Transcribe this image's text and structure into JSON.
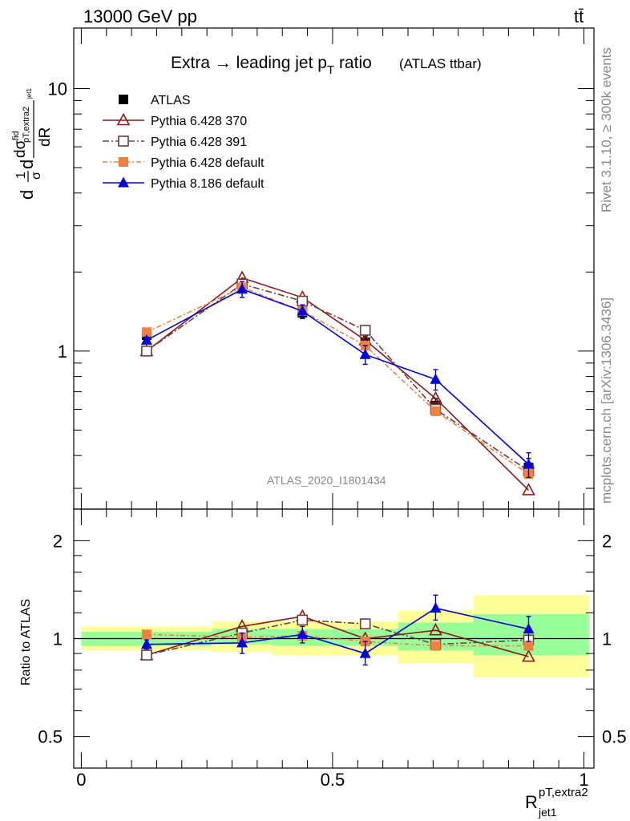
{
  "header": {
    "energy": "13000 GeV pp",
    "process": "tt̄"
  },
  "side_labels": {
    "rivet": "Rivet 3.1.10, ≥ 300k events",
    "site": "mcplots.cern.ch [arXiv:1306.3436]"
  },
  "chart_data": [
    {
      "type": "line",
      "panel": "main",
      "title": "Extra → leading jet p",
      "title_sub": "T",
      "title_after": " ratio",
      "title_extra": "(ATLAS ttbar)",
      "yscale": "log",
      "ylim": [
        0.25,
        17
      ],
      "xlim": [
        -0.015,
        1.02
      ],
      "ylabel": "d1/σ dσ/dR",
      "ytick_labels": [
        {
          "value": 1,
          "label": "1"
        },
        {
          "value": 10,
          "label": "10"
        }
      ],
      "watermark": "ATLAS_2020_I1801434",
      "x": [
        0.13,
        0.32,
        0.44,
        0.565,
        0.705,
        0.89
      ],
      "series": [
        {
          "name": "ATLAS",
          "color": "#000000",
          "marker": "square-filled",
          "values": [
            1.15,
            1.8,
            1.4,
            1.08,
            0.62,
            0.36
          ],
          "err_up": [
            0.05,
            0.08,
            0.07,
            0.06,
            0.04,
            0.03
          ],
          "err_dn": [
            0.05,
            0.08,
            0.07,
            0.06,
            0.04,
            0.03
          ]
        },
        {
          "name": "Pythia 6.428 370",
          "color": "#8B1A1A",
          "dash": "",
          "marker": "triangle-open",
          "values": [
            1.0,
            1.9,
            1.6,
            1.1,
            0.66,
            0.295
          ]
        },
        {
          "name": "Pythia 6.428 391",
          "color": "#6B4040",
          "dash": "8,3,2,3",
          "marker": "square-open",
          "values": [
            1.0,
            1.8,
            1.55,
            1.2,
            0.6,
            0.35
          ]
        },
        {
          "name": "Pythia 6.428 default",
          "color": "#F08040",
          "dash": "6,3,2,3",
          "marker": "square-filled",
          "values": [
            1.18,
            1.75,
            1.42,
            1.05,
            0.59,
            0.34
          ]
        },
        {
          "name": "Pythia 8.186 default",
          "color": "#0000DD",
          "dash": "",
          "marker": "triangle-filled",
          "values": [
            1.1,
            1.72,
            1.42,
            0.97,
            0.78,
            0.37
          ],
          "err_up": [
            0.03,
            0.12,
            0.08,
            0.08,
            0.07,
            0.04
          ],
          "err_dn": [
            0.03,
            0.12,
            0.08,
            0.08,
            0.07,
            0.04
          ]
        }
      ]
    },
    {
      "type": "line",
      "panel": "ratio",
      "ylabel": "Ratio to ATLAS",
      "yscale": "log",
      "ylim": [
        0.4,
        2.5
      ],
      "xlim": [
        -0.015,
        1.02
      ],
      "xlabel": "R",
      "xlabel_sup": "pT,extra2",
      "xlabel_sub": "jet1",
      "xtick_labels": [
        {
          "value": 0,
          "label": "0"
        },
        {
          "value": 0.5,
          "label": "0.5"
        },
        {
          "value": 1,
          "label": "1"
        }
      ],
      "ytick_labels": [
        {
          "value": 0.5,
          "label": "0.5"
        },
        {
          "value": 1,
          "label": "1"
        },
        {
          "value": 2,
          "label": "2"
        }
      ],
      "bands": [
        {
          "x0": 0.0,
          "x1": 0.26,
          "green": [
            0.95,
            1.05
          ],
          "yellow": [
            0.92,
            1.09
          ]
        },
        {
          "x0": 0.26,
          "x1": 0.38,
          "green": [
            0.96,
            1.07
          ],
          "yellow": [
            0.91,
            1.13
          ]
        },
        {
          "x0": 0.38,
          "x1": 0.5,
          "green": [
            0.95,
            1.07
          ],
          "yellow": [
            0.89,
            1.13
          ]
        },
        {
          "x0": 0.5,
          "x1": 0.63,
          "green": [
            0.95,
            1.07
          ],
          "yellow": [
            0.89,
            1.13
          ]
        },
        {
          "x0": 0.63,
          "x1": 0.78,
          "green": [
            0.92,
            1.12
          ],
          "yellow": [
            0.84,
            1.22
          ]
        },
        {
          "x0": 0.78,
          "x1": 1.01,
          "green": [
            0.89,
            1.19
          ],
          "yellow": [
            0.76,
            1.36
          ]
        }
      ],
      "x": [
        0.13,
        0.32,
        0.44,
        0.565,
        0.705,
        0.89
      ],
      "series": [
        {
          "name": "Pythia 6.428 370",
          "color": "#8B1A1A",
          "dash": "",
          "marker": "triangle-open",
          "values": [
            0.89,
            1.09,
            1.17,
            1.0,
            1.06,
            0.88
          ]
        },
        {
          "name": "Pythia 6.428 391",
          "color": "#6B4040",
          "dash": "8,3,2,3",
          "marker": "square-open",
          "values": [
            0.89,
            1.04,
            1.14,
            1.11,
            0.96,
            0.99
          ]
        },
        {
          "name": "Pythia 6.428 default",
          "color": "#F08040",
          "dash": "6,3,2,3",
          "marker": "square-filled",
          "values": [
            1.03,
            1.01,
            1.02,
            0.98,
            0.95,
            0.95
          ]
        },
        {
          "name": "Pythia 8.186 default",
          "color": "#0000DD",
          "dash": "",
          "marker": "triangle-filled",
          "values": [
            0.96,
            0.97,
            1.03,
            0.9,
            1.24,
            1.07
          ],
          "err_up": [
            0.03,
            0.07,
            0.06,
            0.08,
            0.12,
            0.1
          ],
          "err_dn": [
            0.03,
            0.07,
            0.06,
            0.07,
            0.1,
            0.09
          ]
        }
      ]
    }
  ]
}
